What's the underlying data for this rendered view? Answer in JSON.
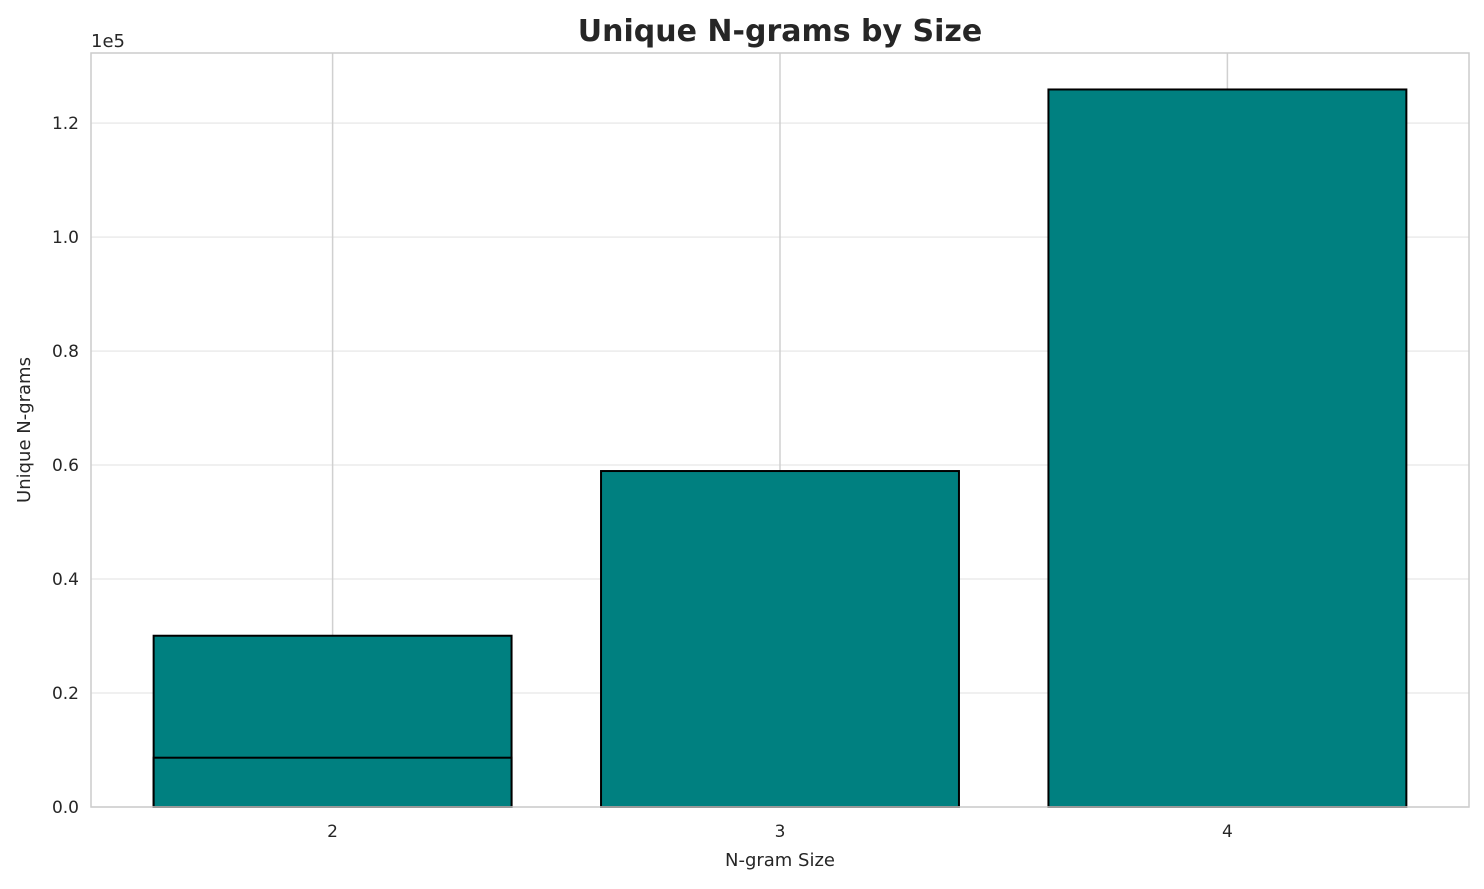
{
  "chart_data": {
    "type": "bar",
    "title": "Unique N-grams by Size",
    "xlabel": "N-gram Size",
    "ylabel": "Unique N-grams",
    "y_offset_label": "1e5",
    "categories": [
      "2",
      "3",
      "4"
    ],
    "x": [
      2,
      3,
      4
    ],
    "series": [
      {
        "x": [
          2,
          3,
          4
        ],
        "values": [
          30050,
          58950,
          125900
        ]
      },
      {
        "x": [
          2
        ],
        "values": [
          8650
        ]
      }
    ],
    "xlim": [
      1.46,
      4.54
    ],
    "ylim": [
      0,
      132300
    ],
    "yticks": [
      0,
      20000,
      40000,
      60000,
      80000,
      100000,
      120000
    ],
    "ytick_labels": [
      "0.0",
      "0.2",
      "0.4",
      "0.6",
      "0.8",
      "1.0",
      "1.2"
    ],
    "xtick_labels": [
      "2",
      "3",
      "4"
    ],
    "bar_width": 0.8,
    "grid": true,
    "colors": {
      "bar": "#008080",
      "edge": "#000000",
      "grid_x": "#d0d0d0",
      "grid_y": "#ebebeb",
      "spine": "#cccccc"
    }
  }
}
